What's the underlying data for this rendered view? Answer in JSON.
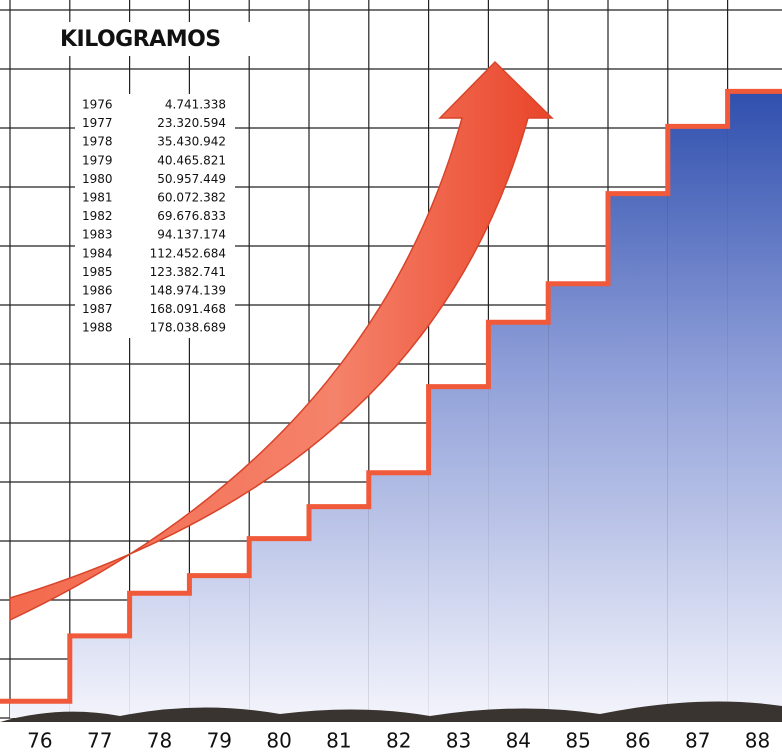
{
  "chart_data": {
    "type": "step",
    "title": "KILOGRAMOS",
    "categories": [
      "76",
      "77",
      "78",
      "79",
      "80",
      "81",
      "82",
      "83",
      "84",
      "85",
      "86",
      "87",
      "88"
    ],
    "table_years": [
      "1976",
      "1977",
      "1978",
      "1979",
      "1980",
      "1981",
      "1982",
      "1983",
      "1984",
      "1985",
      "1986",
      "1987",
      "1988"
    ],
    "values": [
      4741338,
      23320594,
      35430942,
      40465821,
      50957449,
      60072382,
      69676833,
      94137174,
      112452684,
      123382741,
      148974139,
      168091468,
      178038689
    ],
    "value_labels": [
      "4.741.338",
      "23.320.594",
      "35.430.942",
      "40.465.821",
      "50.957.449",
      "60.072.382",
      "69.676.833",
      "94.137.174",
      "112.452.684",
      "123.382.741",
      "148.974.139",
      "168.091.468",
      "178.038.689"
    ],
    "ylim": [
      0,
      204000000
    ],
    "color": "#2f4fae",
    "line_color": "#f05a3a",
    "grid": true
  }
}
